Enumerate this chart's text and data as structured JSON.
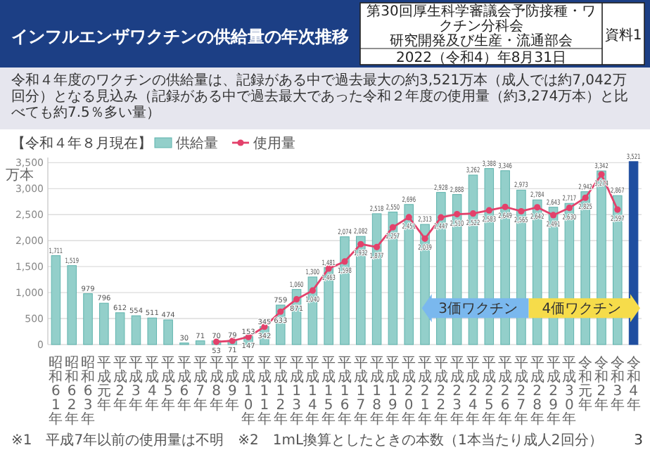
{
  "chart_data": {
    "type": "bar",
    "title": "インフルエンザワクチンの供給量の年次推移",
    "subtitle": "令和４年度のワクチンの供給量は、記録がある中で過去最大の約3,521万本（成人では約7,042万回分）となる見込み（記録がある中で過去最大であった令和２年度の使用量（約3,274万本）と比べても約7.5％多い量）",
    "ylabel": "万本",
    "categories": [
      "昭和61年",
      "昭和62年",
      "昭和63年",
      "平成元年",
      "平成2年",
      "平成3年",
      "平成4年",
      "平成5年",
      "平成6年",
      "平成7年",
      "平成8年",
      "平成9年",
      "平成10年",
      "平成11年",
      "平成12年",
      "平成13年",
      "平成14年",
      "平成15年",
      "平成16年",
      "平成17年",
      "平成18年",
      "平成19年",
      "平成20年",
      "平成21年",
      "平成22年",
      "平成23年",
      "平成24年",
      "平成25年",
      "平成26年",
      "平成27年",
      "平成28年",
      "平成29年",
      "平成30年",
      "令和元年",
      "令和2年",
      "令和3年",
      "令和4年"
    ],
    "series": [
      {
        "name": "供給量",
        "color": "#93cfca",
        "colors": [
          "#93cfca",
          "#93cfca",
          "#93cfca",
          "#93cfca",
          "#93cfca",
          "#93cfca",
          "#93cfca",
          "#93cfca",
          "#93cfca",
          "#93cfca",
          "#93cfca",
          "#93cfca",
          "#93cfca",
          "#93cfca",
          "#93cfca",
          "#93cfca",
          "#93cfca",
          "#93cfca",
          "#93cfca",
          "#93cfca",
          "#93cfca",
          "#93cfca",
          "#93cfca",
          "#93cfca",
          "#93cfca",
          "#93cfca",
          "#93cfca",
          "#93cfca",
          "#93cfca",
          "#93cfca",
          "#93cfca",
          "#93cfca",
          "#93cfca",
          "#93cfca",
          "#93cfca",
          "#93cfca",
          "#1f4ea0"
        ],
        "values": [
          1711,
          1519,
          979,
          796,
          612,
          554,
          511,
          474,
          30,
          71,
          70,
          79,
          153,
          345,
          759,
          1060,
          1300,
          1481,
          2074,
          2082,
          2518,
          2550,
          2696,
          2313,
          2928,
          2888,
          3262,
          3388,
          3346,
          2973,
          2784,
          2643,
          2717,
          2942,
          3342,
          2867,
          3521
        ],
        "value_labels": [
          "1,711",
          "1,519",
          "979",
          "796",
          "612",
          "554",
          "511",
          "474",
          "30",
          "71",
          "70",
          "79",
          "153",
          "345",
          "759",
          "1,060",
          "1,300",
          "1,481",
          "2,074",
          "2,082",
          "2,518",
          "2,550",
          "2,696",
          "2,313",
          "2,928",
          "2,888",
          "3,262",
          "3,388",
          "3,346",
          "2,973",
          "2,784",
          "2,643",
          "2,717",
          "2,942",
          "3,342",
          "2,867",
          "3,521"
        ]
      },
      {
        "name": "使用量",
        "type": "line",
        "color": "#e3416b",
        "values": [
          null,
          null,
          null,
          null,
          null,
          null,
          null,
          null,
          null,
          null,
          53,
          71,
          147,
          342,
          633,
          871,
          1040,
          1463,
          1598,
          1932,
          1877,
          2257,
          2451,
          2039,
          2447,
          2510,
          2522,
          2583,
          2649,
          2565,
          2642,
          2491,
          2630,
          2825,
          3274,
          2597,
          null
        ],
        "value_labels": [
          null,
          null,
          null,
          null,
          null,
          null,
          null,
          null,
          null,
          null,
          "53",
          "71",
          "147",
          "342",
          "633",
          "871",
          "1,040",
          "1,463",
          "1,598",
          "1,932",
          "1,877",
          "2,257",
          "2,451",
          "2,039",
          "2,447",
          "2,510",
          "2,522",
          "2,583",
          "2,649",
          "2,565",
          "2,642",
          "2,491",
          "2,630",
          "2,825",
          "3,274",
          "2,597",
          null
        ]
      }
    ],
    "ylim": [
      0,
      3600
    ],
    "yticks": [
      0,
      500,
      {
        "value": 1000,
        "label": "1,000"
      },
      {
        "value": 1500,
        "label": "1,500"
      },
      {
        "value": 2000,
        "label": "2,000"
      },
      {
        "value": 2500,
        "label": "2,500"
      },
      {
        "value": 3000,
        "label": "3,000"
      },
      {
        "value": 3500,
        "label": "3,500"
      }
    ],
    "grid": "y",
    "legend": "top left",
    "marker": "circle",
    "annotations": [
      "第30回厚生科学審議会予防接種・ワクチン分科会",
      "研究開発及び生産・流通部会",
      "2022（令和4）年8月31日",
      "資料1",
      "【令和４年８月現在】",
      "3価ワクチン",
      "4価ワクチン",
      "※1　平成7年以前の使用量は不明",
      "※2　1mL換算としたときの本数（1本当たり成人2回分）",
      "3"
    ]
  }
}
